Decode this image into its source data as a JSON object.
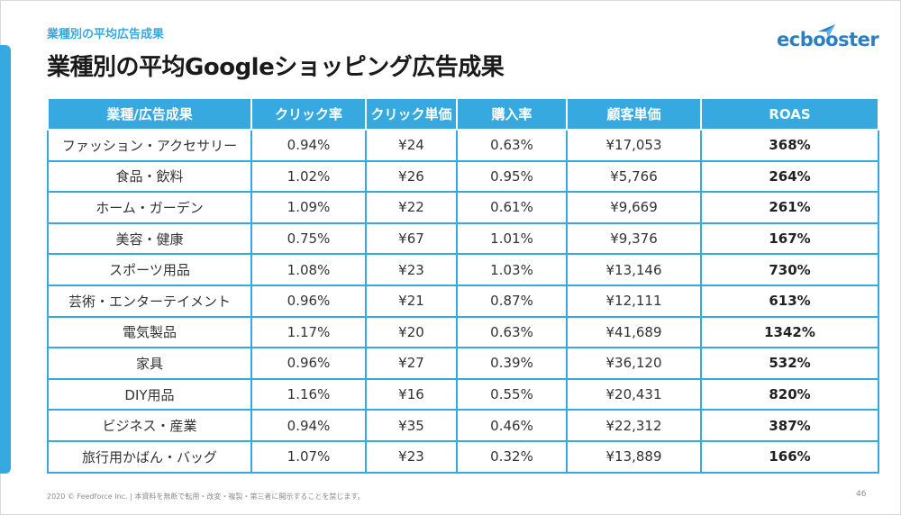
{
  "header": {
    "subtitle": "業種別の平均広告成果",
    "title": "業種別の平均Googleショッピング広告成果",
    "logo_text": "ecbooster"
  },
  "table": {
    "columns": [
      "業種/広告成果",
      "クリック率",
      "クリック単価",
      "購入率",
      "顧客単価",
      "ROAS"
    ],
    "rows": [
      [
        "ファッション・アクセサリー",
        "0.94%",
        "¥24",
        "0.63%",
        "¥17,053",
        "368%"
      ],
      [
        "食品・飲料",
        "1.02%",
        "¥26",
        "0.95%",
        "¥5,766",
        "264%"
      ],
      [
        "ホーム・ガーデン",
        "1.09%",
        "¥22",
        "0.61%",
        "¥9,669",
        "261%"
      ],
      [
        "美容・健康",
        "0.75%",
        "¥67",
        "1.01%",
        "¥9,376",
        "167%"
      ],
      [
        "スポーツ用品",
        "1.08%",
        "¥23",
        "1.03%",
        "¥13,146",
        "730%"
      ],
      [
        "芸術・エンターテイメント",
        "0.96%",
        "¥21",
        "0.87%",
        "¥12,111",
        "613%"
      ],
      [
        "電気製品",
        "1.17%",
        "¥20",
        "0.63%",
        "¥41,689",
        "1342%"
      ],
      [
        "家具",
        "0.96%",
        "¥27",
        "0.39%",
        "¥36,120",
        "532%"
      ],
      [
        "DIY用品",
        "1.16%",
        "¥16",
        "0.55%",
        "¥20,431",
        "820%"
      ],
      [
        "ビジネス・産業",
        "0.94%",
        "¥35",
        "0.46%",
        "¥22,312",
        "387%"
      ],
      [
        "旅行用かばん・バッグ",
        "1.07%",
        "¥23",
        "0.32%",
        "¥13,889",
        "166%"
      ]
    ]
  },
  "footer": {
    "copyright": "2020 © Feedforce Inc. | 本資料を無断で転用・改変・複製・第三者に開示することを禁じます。",
    "page_number": "46"
  },
  "colors": {
    "accent": "#36a9e1",
    "logo": "#2d7fc1"
  }
}
